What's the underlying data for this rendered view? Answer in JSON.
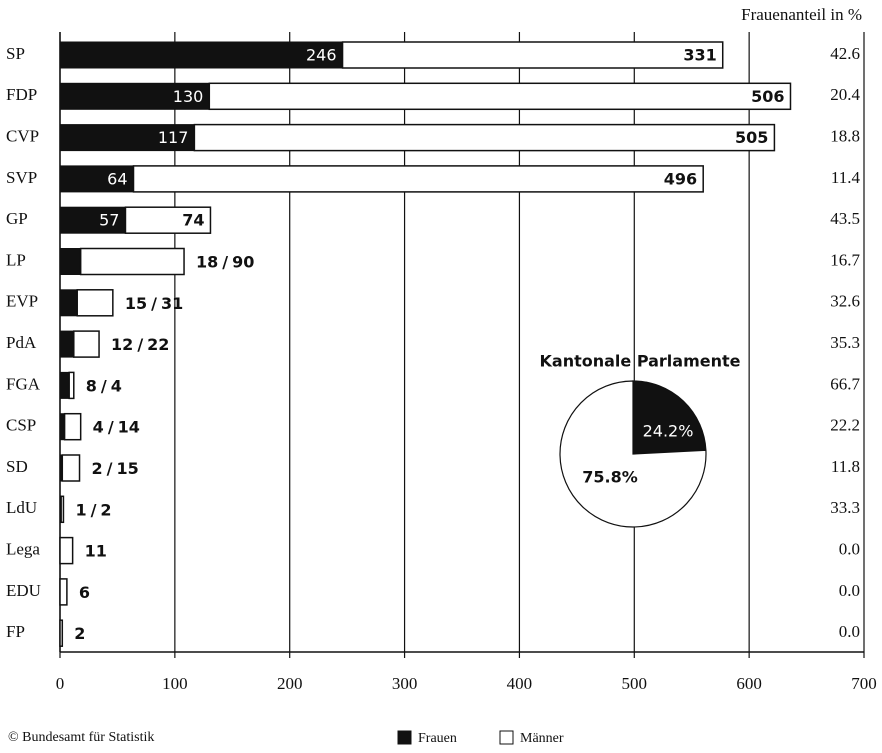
{
  "chart_data": {
    "type": "stacked-bar-horizontal",
    "categories": [
      "SP",
      "FDP",
      "CVP",
      "SVP",
      "GP",
      "LP",
      "EVP",
      "PdA",
      "FGA",
      "CSP",
      "SD",
      "LdU",
      "Lega",
      "EDU",
      "FP"
    ],
    "series": [
      {
        "name": "Frauen",
        "color": "#111111",
        "values": [
          246,
          130,
          117,
          64,
          57,
          18,
          15,
          12,
          8,
          4,
          2,
          1,
          0,
          0,
          0
        ]
      },
      {
        "name": "Männer",
        "color": "#ffffff",
        "values": [
          331,
          506,
          505,
          496,
          74,
          90,
          31,
          22,
          4,
          14,
          15,
          2,
          11,
          6,
          2
        ]
      }
    ],
    "label_separator": "/",
    "xlim": [
      0,
      700
    ],
    "xticks": [
      0,
      100,
      200,
      300,
      400,
      500,
      600,
      700
    ],
    "grid": true,
    "share": {
      "title": "Frauenanteil in %",
      "values": [
        42.6,
        20.4,
        18.8,
        11.4,
        43.5,
        16.7,
        32.6,
        35.3,
        66.7,
        22.2,
        11.8,
        33.3,
        0.0,
        0.0,
        0.0
      ],
      "value_labels": [
        "42.6",
        "20.4",
        "18.8",
        "11.4",
        "43.5",
        "16.7",
        "32.6",
        "35.3",
        "66.7",
        "22.2",
        "11.8",
        "33.3",
        "0.0",
        "0.0",
        "0.0"
      ]
    },
    "inset": {
      "type": "pie",
      "title": "Kantonale Parlamente",
      "categories": [
        "Frauen",
        "Männer"
      ],
      "values": [
        24.2,
        75.8
      ],
      "value_labels": [
        "24.2%",
        "75.8%"
      ],
      "colors": [
        "#111111",
        "#ffffff"
      ]
    },
    "source": "© Bundesamt für Statistik"
  }
}
